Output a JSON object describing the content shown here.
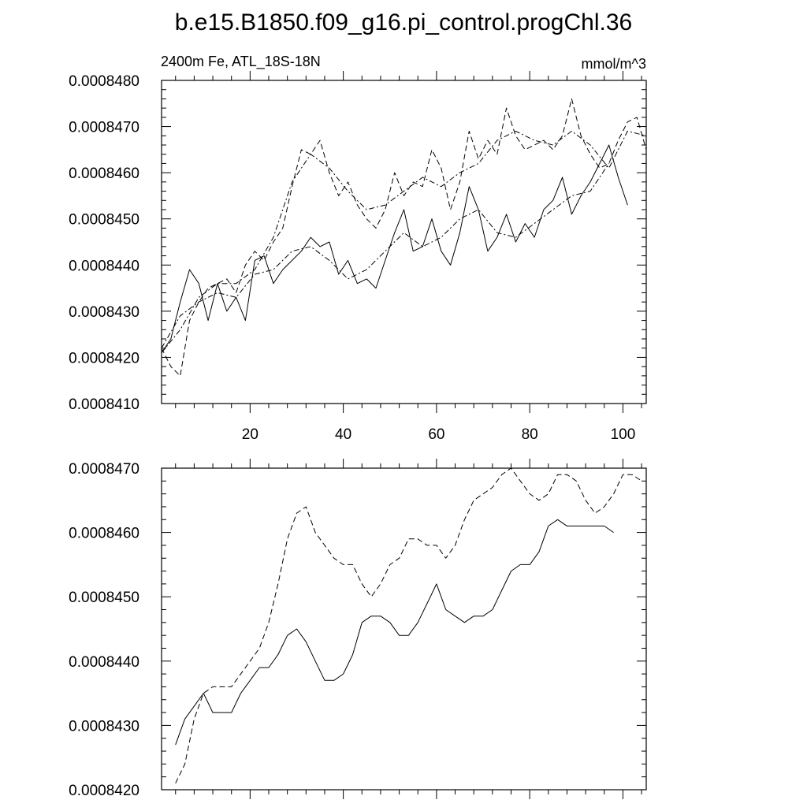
{
  "title": "b.e15.B1850.f09_g16.pi_control.progChl.36",
  "chart_data": [
    {
      "type": "line",
      "subtitle_left": "2400m Fe, ATL_18S-18N",
      "subtitle_right": "mmol/m^3",
      "xlim": [
        1,
        105
      ],
      "ylim": [
        0.000841,
        0.000848
      ],
      "xticks": [
        20,
        40,
        60,
        80,
        100
      ],
      "xtick_labels": [
        "20",
        "40",
        "60",
        "80",
        "100"
      ],
      "yticks": [
        0.000841,
        0.000842,
        0.000843,
        0.000844,
        0.000845,
        0.000846,
        0.000847,
        0.000848
      ],
      "ytick_labels": [
        "0.0008410",
        "0.0008420",
        "0.0008430",
        "0.0008440",
        "0.0008450",
        "0.0008460",
        "0.0008470",
        "0.0008480"
      ],
      "grid": false,
      "series": [
        {
          "style": "solid",
          "x": [
            1,
            3,
            5,
            7,
            9,
            11,
            13,
            15,
            17,
            19,
            21,
            23,
            25,
            27,
            29,
            31,
            33,
            35,
            37,
            39,
            41,
            43,
            45,
            47,
            49,
            51,
            53,
            55,
            57,
            59,
            61,
            63,
            65,
            67,
            69,
            71,
            73,
            75,
            77,
            79,
            81,
            83,
            85,
            87,
            89,
            91,
            93,
            95,
            97,
            99,
            101
          ],
          "y": [
            0.0008421,
            0.0008424,
            0.0008432,
            0.0008439,
            0.0008436,
            0.0008428,
            0.0008436,
            0.000843,
            0.0008433,
            0.0008428,
            0.0008441,
            0.0008442,
            0.0008436,
            0.0008439,
            0.0008441,
            0.0008443,
            0.0008446,
            0.0008444,
            0.0008445,
            0.0008438,
            0.0008441,
            0.0008436,
            0.0008437,
            0.0008435,
            0.0008441,
            0.0008447,
            0.0008452,
            0.0008443,
            0.0008444,
            0.000845,
            0.0008443,
            0.000844,
            0.0008447,
            0.0008457,
            0.0008452,
            0.0008443,
            0.0008446,
            0.0008451,
            0.0008445,
            0.0008449,
            0.0008446,
            0.0008452,
            0.0008454,
            0.0008459,
            0.0008451,
            0.0008455,
            0.0008458,
            0.0008462,
            0.0008466,
            0.0008459,
            0.0008453
          ]
        },
        {
          "style": "dash",
          "x": [
            1,
            3,
            5,
            7,
            9,
            11,
            13,
            15,
            17,
            19,
            21,
            23,
            25,
            27,
            29,
            31,
            33,
            35,
            37,
            39,
            41,
            43,
            45,
            47,
            49,
            51,
            53,
            55,
            57,
            59,
            61,
            63,
            65,
            67,
            69,
            71,
            73,
            75,
            77,
            79,
            81,
            83,
            85,
            87,
            89,
            91,
            93,
            95,
            97,
            99,
            101,
            103,
            105
          ],
          "y": [
            0.0008422,
            0.0008418,
            0.0008416,
            0.0008428,
            0.0008432,
            0.0008435,
            0.0008436,
            0.0008437,
            0.0008434,
            0.000844,
            0.0008443,
            0.0008441,
            0.0008445,
            0.0008448,
            0.0008457,
            0.0008465,
            0.0008464,
            0.0008467,
            0.000846,
            0.0008455,
            0.0008458,
            0.0008453,
            0.000845,
            0.0008448,
            0.0008452,
            0.000846,
            0.0008455,
            0.0008458,
            0.0008457,
            0.0008465,
            0.0008461,
            0.0008452,
            0.0008458,
            0.0008469,
            0.0008463,
            0.0008467,
            0.0008464,
            0.0008474,
            0.0008468,
            0.0008465,
            0.0008466,
            0.0008467,
            0.0008465,
            0.0008468,
            0.0008476,
            0.0008468,
            0.0008464,
            0.0008461,
            0.0008462,
            0.0008467,
            0.0008471,
            0.0008472,
            0.0008465
          ]
        },
        {
          "style": "dashdot",
          "x": [
            1,
            5,
            9,
            13,
            17,
            21,
            25,
            29,
            33,
            37,
            41,
            45,
            49,
            53,
            57,
            61,
            65,
            69,
            73,
            77,
            81,
            85,
            89,
            93,
            97
          ],
          "y": [
            0.0008422,
            0.0008429,
            0.0008432,
            0.0008434,
            0.0008433,
            0.0008438,
            0.0008439,
            0.0008443,
            0.0008444,
            0.0008441,
            0.0008437,
            0.0008439,
            0.0008443,
            0.0008447,
            0.0008444,
            0.0008446,
            0.000845,
            0.0008452,
            0.0008447,
            0.0008446,
            0.0008449,
            0.0008452,
            0.0008455,
            0.0008456,
            0.0008462
          ]
        },
        {
          "style": "dashdot",
          "x": [
            1,
            5,
            9,
            13,
            17,
            21,
            25,
            29,
            33,
            37,
            41,
            45,
            49,
            53,
            57,
            61,
            65,
            69,
            73,
            77,
            81,
            85,
            89,
            93,
            97,
            101,
            105
          ],
          "y": [
            0.0008421,
            0.0008426,
            0.0008433,
            0.0008436,
            0.0008436,
            0.0008439,
            0.0008446,
            0.0008458,
            0.0008464,
            0.0008461,
            0.0008456,
            0.0008452,
            0.0008453,
            0.0008456,
            0.0008459,
            0.0008457,
            0.000846,
            0.0008462,
            0.0008467,
            0.0008469,
            0.0008467,
            0.0008466,
            0.0008469,
            0.0008466,
            0.0008461,
            0.0008469,
            0.0008468
          ]
        }
      ]
    },
    {
      "type": "line",
      "xlim": [
        1,
        105
      ],
      "ylim": [
        0.000842,
        0.000847
      ],
      "xticks": [
        20,
        40,
        60,
        80,
        100
      ],
      "yticks": [
        0.000842,
        0.000843,
        0.000844,
        0.000845,
        0.000846,
        0.000847
      ],
      "ytick_labels": [
        "0.0008420",
        "0.0008430",
        "0.0008440",
        "0.0008450",
        "0.0008460",
        "0.0008470"
      ],
      "grid": false,
      "series": [
        {
          "style": "solid",
          "x": [
            4,
            6,
            8,
            10,
            12,
            14,
            16,
            18,
            20,
            22,
            24,
            26,
            28,
            30,
            32,
            34,
            36,
            38,
            40,
            42,
            44,
            46,
            48,
            50,
            52,
            54,
            56,
            58,
            60,
            62,
            64,
            66,
            68,
            70,
            72,
            74,
            76,
            78,
            80,
            82,
            84,
            86,
            88,
            90,
            92,
            94,
            96,
            98
          ],
          "y": [
            0.0008427,
            0.0008431,
            0.0008433,
            0.0008435,
            0.0008432,
            0.0008432,
            0.0008432,
            0.0008435,
            0.0008437,
            0.0008439,
            0.0008439,
            0.0008441,
            0.0008444,
            0.0008445,
            0.0008443,
            0.000844,
            0.0008437,
            0.0008437,
            0.0008438,
            0.0008441,
            0.0008446,
            0.0008447,
            0.0008447,
            0.0008446,
            0.0008444,
            0.0008444,
            0.0008446,
            0.0008449,
            0.0008452,
            0.0008448,
            0.0008447,
            0.0008446,
            0.0008447,
            0.0008447,
            0.0008448,
            0.0008451,
            0.0008454,
            0.0008455,
            0.0008455,
            0.0008457,
            0.0008461,
            0.0008462,
            0.0008461,
            0.0008461,
            0.0008461,
            0.0008461,
            0.0008461,
            0.000846
          ]
        },
        {
          "style": "dash",
          "x": [
            4,
            6,
            8,
            10,
            12,
            14,
            16,
            18,
            20,
            22,
            24,
            26,
            28,
            30,
            32,
            34,
            36,
            38,
            40,
            42,
            44,
            46,
            48,
            50,
            52,
            54,
            56,
            58,
            60,
            62,
            64,
            66,
            68,
            70,
            72,
            74,
            76,
            78,
            80,
            82,
            84,
            86,
            88,
            90,
            92,
            94,
            96,
            98,
            100,
            102,
            104
          ],
          "y": [
            0.0008421,
            0.0008424,
            0.0008431,
            0.0008435,
            0.0008436,
            0.0008436,
            0.0008436,
            0.0008438,
            0.000844,
            0.0008442,
            0.0008446,
            0.0008452,
            0.0008459,
            0.0008463,
            0.0008464,
            0.000846,
            0.0008458,
            0.0008456,
            0.0008455,
            0.0008455,
            0.0008452,
            0.000845,
            0.0008452,
            0.0008455,
            0.0008456,
            0.0008459,
            0.0008459,
            0.0008458,
            0.0008458,
            0.0008456,
            0.0008458,
            0.0008462,
            0.0008465,
            0.0008466,
            0.0008467,
            0.0008469,
            0.000847,
            0.0008468,
            0.0008466,
            0.0008465,
            0.0008466,
            0.0008469,
            0.0008469,
            0.0008468,
            0.0008465,
            0.0008463,
            0.0008464,
            0.0008466,
            0.0008469,
            0.0008469,
            0.0008468
          ]
        }
      ]
    }
  ]
}
